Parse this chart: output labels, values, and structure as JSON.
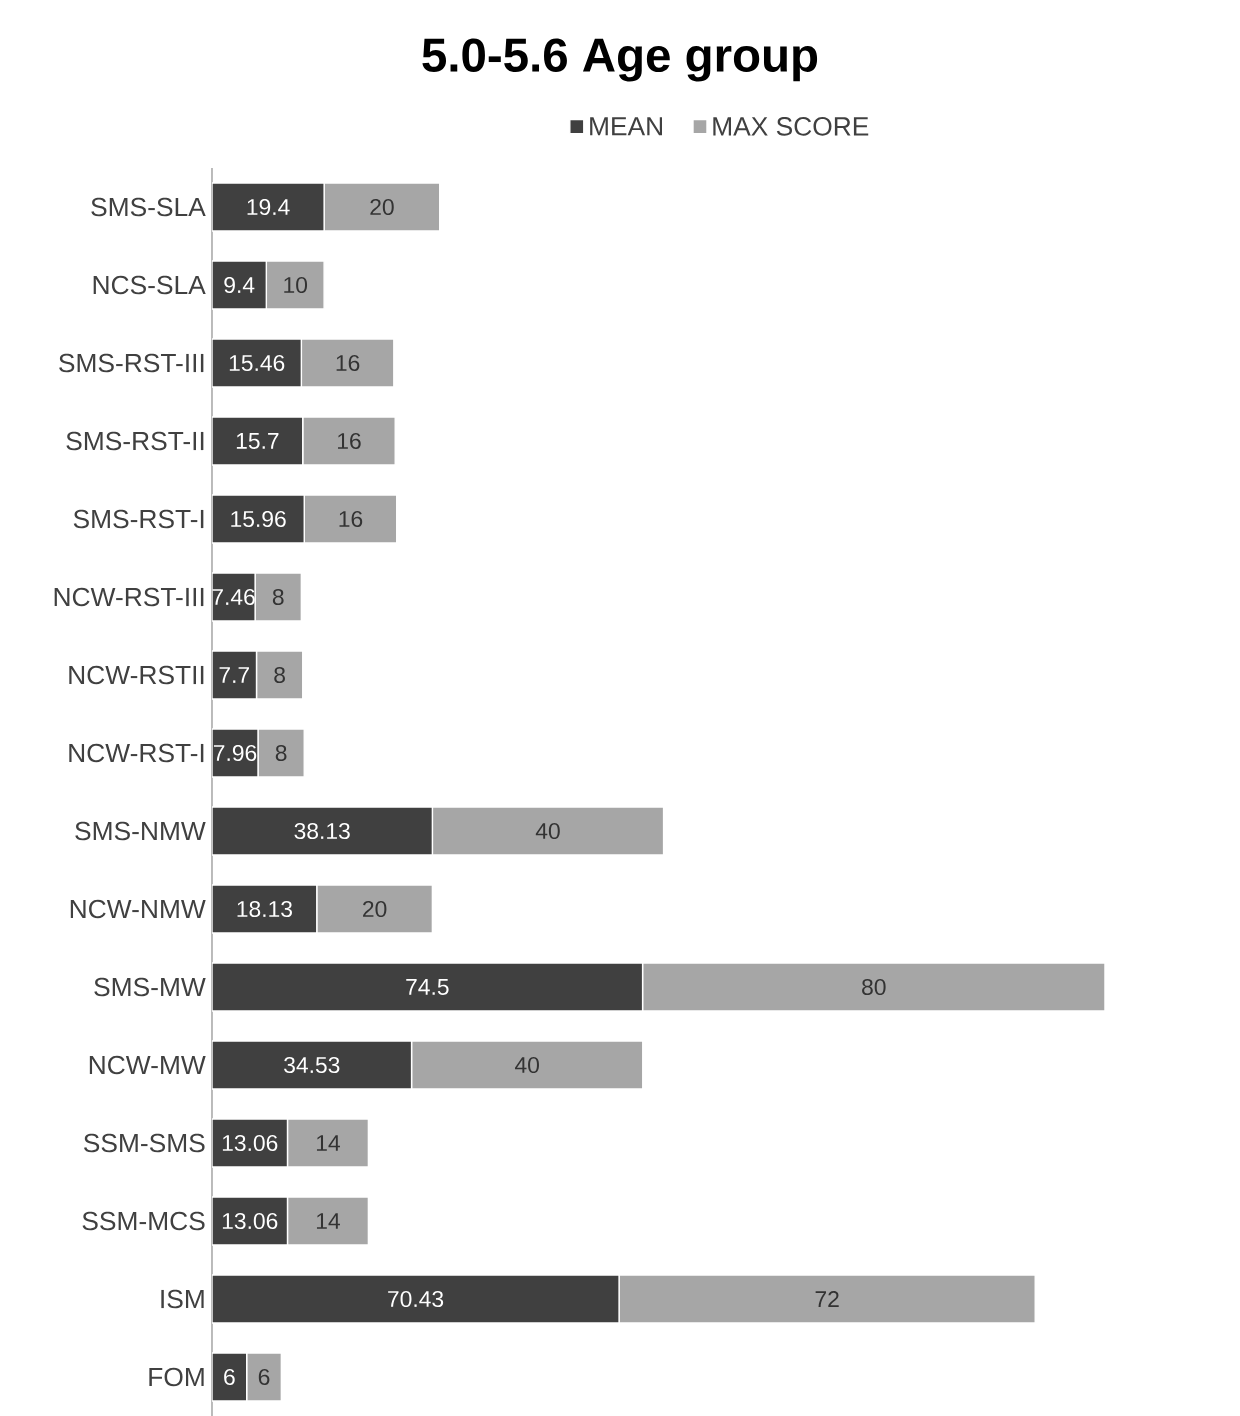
{
  "chart_data": {
    "type": "bar",
    "orientation": "horizontal",
    "stacked": true,
    "title": "5.0-5.6 Age group",
    "categories": [
      "SMS-SLA",
      "NCS-SLA",
      "SMS-RST-III",
      "SMS-RST-II",
      "SMS-RST-I",
      "NCW-RST-III",
      "NCW-RSTII",
      "NCW-RST-I",
      "SMS-NMW",
      "NCW-NMW",
      "SMS-MW",
      "NCW-MW",
      "SSM-SMS",
      "SSM-MCS",
      "ISM",
      "FOM"
    ],
    "series": [
      {
        "name": "MEAN",
        "color": "#404040",
        "values": [
          19.4,
          9.4,
          15.46,
          15.7,
          15.96,
          7.46,
          7.7,
          7.96,
          38.13,
          18.13,
          74.5,
          34.53,
          13.06,
          13.06,
          70.43,
          6
        ]
      },
      {
        "name": "MAX SCORE",
        "color": "#a6a6a6",
        "values": [
          20,
          10,
          16,
          16,
          16,
          8,
          8,
          8,
          40,
          20,
          80,
          40,
          14,
          14,
          72,
          6
        ]
      }
    ],
    "data_labels": true,
    "legend": "top"
  }
}
